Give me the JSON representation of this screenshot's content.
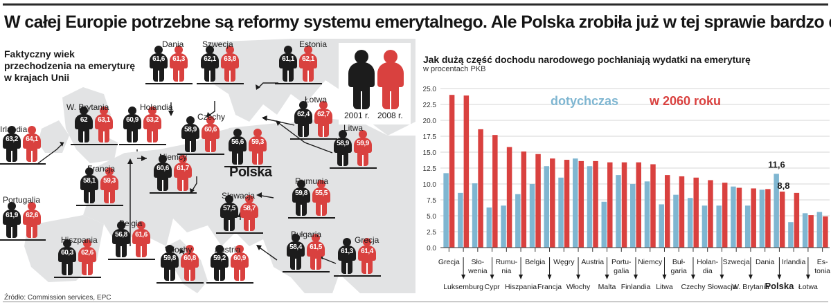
{
  "headline": "W całej Europie potrzebne są reformy systemu emerytalnego. Ale Polska zrobiła już w tej sprawie bardzo dużo",
  "map": {
    "title_lines": [
      "Faktyczny wiek",
      "przechodzenia na emeryturę",
      "w krajach Unii"
    ],
    "legend": {
      "year_2001": "2001 r.",
      "year_2008": "2008 r."
    },
    "polska_label": "Polska",
    "countries": [
      {
        "name": "Irlandia",
        "v2001": "63,2",
        "v2008": "64,1"
      },
      {
        "name": "W. Brytania",
        "v2001": "62",
        "v2008": "63,1"
      },
      {
        "name": "Holandia",
        "v2001": "60,9",
        "v2008": "63,2"
      },
      {
        "name": "Dania",
        "v2001": "61,6",
        "v2008": "61,3"
      },
      {
        "name": "Szwecja",
        "v2001": "62,1",
        "v2008": "63,8"
      },
      {
        "name": "Estonia",
        "v2001": "61,1",
        "v2008": "62,1"
      },
      {
        "name": "Łotwa",
        "v2001": "62,4",
        "v2008": "62,7"
      },
      {
        "name": "Czechy",
        "v2001": "58,9",
        "v2008": "60,6"
      },
      {
        "name": "Polska",
        "v2001": "56,6",
        "v2008": "59,3"
      },
      {
        "name": "Litwa",
        "v2001": "58,9",
        "v2008": "59,9"
      },
      {
        "name": "Niemcy",
        "v2001": "60,6",
        "v2008": "61,7"
      },
      {
        "name": "Francja",
        "v2001": "58,1",
        "v2008": "59,3"
      },
      {
        "name": "Rumunia",
        "v2001": "59,8",
        "v2008": "55,5"
      },
      {
        "name": "Słowacja",
        "v2001": "57,5",
        "v2008": "58,7"
      },
      {
        "name": "Portugalia",
        "v2001": "61,9",
        "v2008": "62,6"
      },
      {
        "name": "Belgia",
        "v2001": "56,8",
        "v2008": "61,6"
      },
      {
        "name": "Hiszpania",
        "v2001": "60,3",
        "v2008": "62,6"
      },
      {
        "name": "Włochy",
        "v2001": "59,8",
        "v2008": "60,8"
      },
      {
        "name": "Austria",
        "v2001": "59,2",
        "v2008": "60,9"
      },
      {
        "name": "Bułgaria",
        "v2001": "58,4",
        "v2008": "61,5"
      },
      {
        "name": "Grecja",
        "v2001": "61,3",
        "v2008": "61,4"
      }
    ]
  },
  "source": "Źródło: Commission services, EPC",
  "chart": {
    "title": "Jak dużą część dochodu narodowego pochłaniają wydatki na emeryturę",
    "subtitle": "w procentach PKB"
  },
  "chart_data": {
    "type": "bar",
    "ylim": [
      0,
      25
    ],
    "yticks": [
      "0.0",
      "2.5",
      "5.0",
      "7.5",
      "10.0",
      "12.5",
      "15.0",
      "17.5",
      "20.0",
      "22.5",
      "25.0"
    ],
    "grid": true,
    "categories": [
      "Grecja",
      "Luksemburg",
      "Słowenia",
      "Cypr",
      "Rumunia",
      "Hiszpania",
      "Belgia",
      "Francja",
      "Węgry",
      "Włochy",
      "Austria",
      "Malta",
      "Portugalia",
      "Finlandia",
      "Niemcy",
      "Litwa",
      "Bułgaria",
      "Czechy",
      "Holandia",
      "Słowacja",
      "Szwecja",
      "W. Brytania",
      "Dania",
      "Polska",
      "Irlandia",
      "Łotwa",
      "Estonia"
    ],
    "label_rows": {
      "top": [
        {
          "index": 0,
          "lines": [
            "Grecja"
          ]
        },
        {
          "index": 2,
          "lines": [
            "Sło-",
            "wenia"
          ]
        },
        {
          "index": 4,
          "lines": [
            "Rumu-",
            "nia"
          ]
        },
        {
          "index": 6,
          "lines": [
            "Belgia"
          ]
        },
        {
          "index": 8,
          "lines": [
            "Węgry"
          ]
        },
        {
          "index": 10,
          "lines": [
            "Austria"
          ]
        },
        {
          "index": 12,
          "lines": [
            "Portu-",
            "galia"
          ]
        },
        {
          "index": 14,
          "lines": [
            "Niemcy"
          ]
        },
        {
          "index": 16,
          "lines": [
            "Buł-",
            "garia"
          ]
        },
        {
          "index": 18,
          "lines": [
            "Holan-",
            "dia"
          ]
        },
        {
          "index": 20,
          "lines": [
            "Szwecja"
          ]
        },
        {
          "index": 22,
          "lines": [
            "Dania"
          ]
        },
        {
          "index": 24,
          "lines": [
            "Irlandia"
          ]
        },
        {
          "index": 26,
          "lines": [
            "Es-",
            "tonia"
          ]
        }
      ],
      "bottom": [
        {
          "index": 1,
          "lines": [
            "Luksemburg"
          ]
        },
        {
          "index": 3,
          "lines": [
            "Cypr"
          ]
        },
        {
          "index": 5,
          "lines": [
            "Hiszpania"
          ]
        },
        {
          "index": 7,
          "lines": [
            "Francja"
          ]
        },
        {
          "index": 9,
          "lines": [
            "Włochy"
          ]
        },
        {
          "index": 11,
          "lines": [
            "Malta"
          ]
        },
        {
          "index": 13,
          "lines": [
            "Finlandia"
          ]
        },
        {
          "index": 15,
          "lines": [
            "Litwa"
          ]
        },
        {
          "index": 17,
          "lines": [
            "Czechy"
          ]
        },
        {
          "index": 19,
          "lines": [
            "Słowacja"
          ]
        },
        {
          "index": 21,
          "lines": [
            "W. Brytania"
          ]
        },
        {
          "index": 23,
          "lines": [
            "Polska"
          ],
          "bold": true
        },
        {
          "index": 25,
          "lines": [
            "Łotwa"
          ]
        }
      ]
    },
    "series": [
      {
        "name": "dotychczas",
        "color": "#7fb6d1",
        "values": [
          11.7,
          8.6,
          10.1,
          6.3,
          6.6,
          8.4,
          10.0,
          12.8,
          11.0,
          14.0,
          12.8,
          7.2,
          11.4,
          10.0,
          10.4,
          6.8,
          8.3,
          7.8,
          6.6,
          6.6,
          9.6,
          6.6,
          9.1,
          11.6,
          4.0,
          5.4,
          5.6
        ]
      },
      {
        "name": "w 2060 roku",
        "color": "#d9413f",
        "values": [
          24.0,
          23.9,
          18.6,
          17.7,
          15.8,
          15.1,
          14.7,
          14.0,
          13.8,
          13.6,
          13.6,
          13.4,
          13.4,
          13.4,
          13.1,
          11.4,
          11.2,
          11.0,
          10.6,
          10.2,
          9.4,
          9.3,
          9.2,
          8.8,
          8.6,
          5.1,
          4.9
        ]
      }
    ],
    "annotations": [
      {
        "text": "11,6",
        "series": 0,
        "index": 23
      },
      {
        "text": "8,8",
        "series": 1,
        "index": 23
      }
    ]
  }
}
